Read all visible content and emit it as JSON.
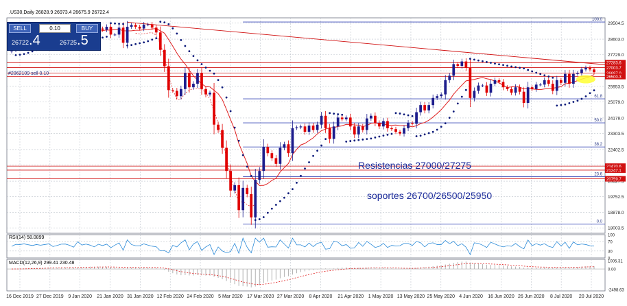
{
  "header": {
    "symbol_line": ".US30,Daily  26828.9 26973.4 26675.9 26722.4",
    "indicator_label": "#2062109 sell 0.10"
  },
  "trade_panel": {
    "sell_label": "SELL",
    "buy_label": "BUY",
    "lot": "0.10",
    "sell_price_main": "26722",
    "sell_price_frac": ".4",
    "buy_price_main": "26725",
    "buy_price_frac": ".5"
  },
  "annotations": {
    "resistances": "Resistencias 27000/27275",
    "supports": "soportes 26700/26500/25950"
  },
  "rsi": {
    "label": "RSI(14) 58.0899",
    "levels": [
      "100",
      "70",
      "30",
      "0"
    ]
  },
  "macd": {
    "label": "MACD(12,26,9) 299.41 230.48",
    "levels": [
      "1005.31",
      "0.00",
      "-2498.63"
    ]
  },
  "colors": {
    "bull": "#1c1c8c",
    "bear": "#e00000",
    "sar": "#0b1a7a",
    "ma": "#e02020",
    "fib": "#3a4ab8",
    "hline": "#d01010",
    "grid": "#bfc4cc",
    "highlight": "#ffff33"
  },
  "chart_data": {
    "type": "candlestick",
    "title": ".US30,Daily",
    "y_axis_ticks": [
      "29504.5",
      "28603.0",
      "27729.0",
      "26825.0",
      "25953.5",
      "25079.0",
      "24178.0",
      "23303.5",
      "22402.5",
      "21528.0",
      "20627.5",
      "19752.5",
      "18878.0",
      "18003.5"
    ],
    "x_axis_labels": [
      "16 Dec 2019",
      "27 Dec 2019",
      "9 Jan 2020",
      "21 Jan 2020",
      "31 Jan 2020",
      "12 Feb 2020",
      "24 Feb 2020",
      "5 Mar 2020",
      "17 Mar 2020",
      "27 Mar 2020",
      "8 Apr 2020",
      "21 Apr 2020",
      "1 May 2020",
      "13 May 2020",
      "25 May 2020",
      "4 Jun 2020",
      "16 Jun 2020",
      "26 Jun 2020",
      "8 Jul 2020",
      "20 Jul 2020"
    ],
    "price_tags": [
      "27283.6",
      "27003.7",
      "26697.0",
      "26500.3",
      "21470.6",
      "21247.1",
      "20759.7"
    ],
    "fib_levels": [
      {
        "label": "100.0",
        "value": 29568
      },
      {
        "label": "61.8",
        "value": 25250
      },
      {
        "label": "50.0",
        "value": 23900
      },
      {
        "label": "38.2",
        "value": 22550
      },
      {
        "label": "23.6",
        "value": 20880
      },
      {
        "label": "0.0",
        "value": 18213
      }
    ],
    "horizontal_levels": [
      27283.6,
      27003.7,
      26697.0,
      26500.3,
      21470.6,
      21247.1,
      20759.7
    ],
    "trendline": {
      "x0": 28,
      "y0": 29550,
      "x1": 147,
      "y1": 27100
    },
    "close": [
      28000,
      28130,
      28230,
      28450,
      28520,
      28460,
      28560,
      28550,
      28650,
      28870,
      28630,
      28580,
      28750,
      28940,
      28910,
      28560,
      29150,
      29170,
      29350,
      29350,
      29050,
      29200,
      29130,
      29300,
      28860,
      28860,
      29250,
      28400,
      29300,
      29400,
      29300,
      29200,
      29420,
      29430,
      29250,
      28980,
      28000,
      27080,
      25740,
      25700,
      25400,
      25800,
      26700,
      25900,
      26100,
      26700,
      25800,
      25500,
      25600,
      23800,
      23500,
      22500,
      21200,
      20100,
      20400,
      19000,
      20250,
      19900,
      18591,
      20700,
      21200,
      22552,
      22200,
      21920,
      21600,
      22500,
      22700,
      22200,
      23600,
      23650,
      23700,
      23400,
      23750,
      23500,
      23800,
      24300,
      23600,
      23000,
      23700,
      24200,
      24100,
      24200,
      23700,
      23250,
      23700,
      23500,
      24150,
      24300,
      23900,
      23700,
      24000,
      23600,
      23550,
      23400,
      23300,
      23600,
      23900,
      23850,
      24500,
      24900,
      24600,
      24900,
      25300,
      25400,
      25500,
      26300,
      26550,
      27200,
      27100,
      27350,
      27000,
      25300,
      25700,
      26000,
      26000,
      25600,
      26100,
      26300,
      26200,
      25900,
      25800,
      25600,
      25900,
      25650,
      25020,
      25900,
      25800,
      26050,
      26050,
      26300,
      26100,
      25700,
      26300,
      26150,
      26650,
      26100,
      26650,
      26700,
      26900,
      27000,
      26900,
      26750
    ],
    "series": [
      {
        "name": "RSI(14)",
        "last": 58.0899
      },
      {
        "name": "MACD(12,26,9)",
        "values": [
          299.41,
          230.48
        ]
      }
    ]
  }
}
